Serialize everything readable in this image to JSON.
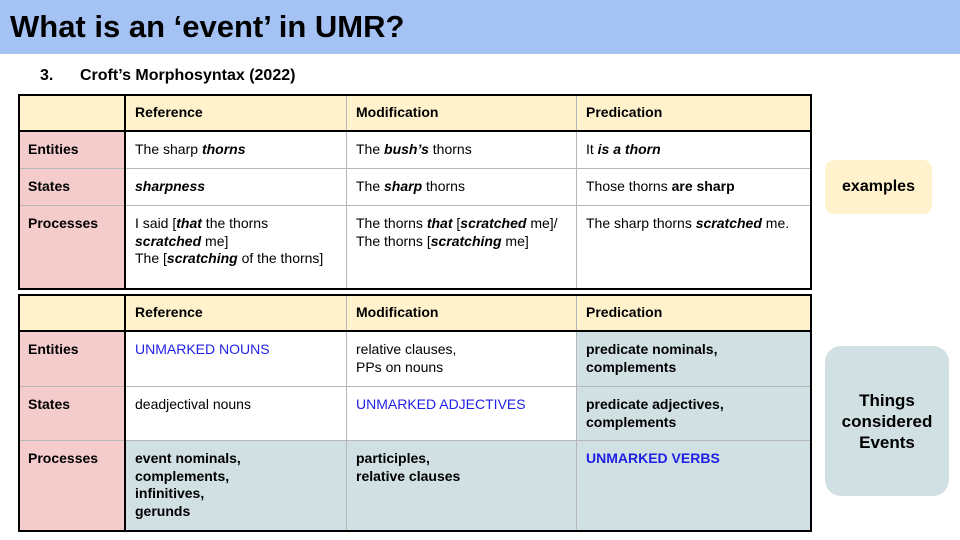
{
  "slide": {
    "title": "What is an ‘event’ in UMR?",
    "subtitle_number": "3.",
    "subtitle_text": "Croft’s Morphosyntax (2022)"
  },
  "columns": [
    "Reference",
    "Modification",
    "Predication"
  ],
  "rows": [
    "Entities",
    "States",
    "Processes"
  ],
  "examples_table": {
    "entities": {
      "reference": [
        {
          "t": "The sharp "
        },
        {
          "t": "thorns",
          "s": "bi"
        }
      ],
      "modification": [
        {
          "t": "The "
        },
        {
          "t": "bush’s",
          "s": "bi"
        },
        {
          "t": " thorns"
        }
      ],
      "predication": [
        {
          "t": "It "
        },
        {
          "t": "is a thorn",
          "s": "bi"
        }
      ]
    },
    "states": {
      "reference": [
        {
          "t": "sharpness",
          "s": "bi"
        }
      ],
      "modification": [
        {
          "t": "The "
        },
        {
          "t": "sharp",
          "s": "bi"
        },
        {
          "t": " thorns"
        }
      ],
      "predication": [
        {
          "t": "Those thorns "
        },
        {
          "t": "are sharp",
          "s": "b"
        }
      ]
    },
    "processes": {
      "reference": [
        {
          "t": "I said ["
        },
        {
          "t": "that",
          "s": "bi"
        },
        {
          "t": " the thorns "
        },
        {
          "t": "scratched",
          "s": "bi"
        },
        {
          "t": " me]"
        },
        {
          "br": true
        },
        {
          "t": "The ["
        },
        {
          "t": "scratching",
          "s": "bi"
        },
        {
          "t": " of the thorns]"
        }
      ],
      "modification": [
        {
          "t": "The thorns "
        },
        {
          "t": "that",
          "s": "bi"
        },
        {
          "t": " ["
        },
        {
          "t": "scratched",
          "s": "bi"
        },
        {
          "t": " me]/"
        },
        {
          "br": true
        },
        {
          "t": "The thorns ["
        },
        {
          "t": "scratching",
          "s": "bi"
        },
        {
          "t": " me]"
        }
      ],
      "predication": [
        {
          "t": "The sharp thorns "
        },
        {
          "t": "scratched",
          "s": "bi"
        },
        {
          "t": " me."
        }
      ]
    }
  },
  "constructions_table": {
    "entities": {
      "reference": "UNMARKED NOUNS",
      "modification": "relative clauses,\nPPs on nouns",
      "predication": "predicate nominals,\ncomplements"
    },
    "states": {
      "reference": "deadjectival nouns",
      "modification": "UNMARKED ADJECTIVES",
      "predication": "predicate adjectives,\ncomplements"
    },
    "processes": {
      "reference": "event nominals,\ncomplements,\ninfinitives,\ngerunds",
      "modification": "participles,\nrelative clauses",
      "predication": "UNMARKED VERBS"
    }
  },
  "side_labels": {
    "examples": "examples",
    "things_considered_events": "Things\nconsidered\nEvents"
  },
  "colors": {
    "title_bar": "#a4c2f4",
    "header_fill": "#fff2cc",
    "row_label_fill": "#f4cccc",
    "event_fill": "#d0e0e3",
    "unmarked_text": "#1f1fe6"
  }
}
